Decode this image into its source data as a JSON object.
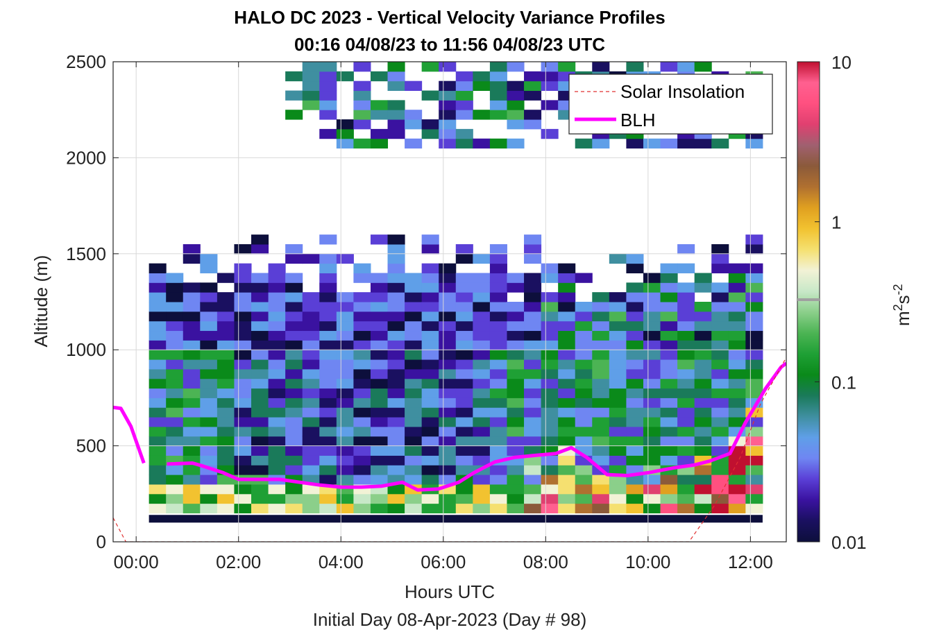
{
  "chart_data": {
    "type": "heatmap",
    "title": "HALO DC 2023 - Vertical Velocity Variance Profiles",
    "subtitle": "00:16 04/08/23 to 11:56 04/08/23  UTC",
    "xlabel": "Hours UTC",
    "xlabel2": "Initial Day 08-Apr-2023 (Day # 98)",
    "ylabel": "Altitude (m)",
    "colorbar_label": "m",
    "colorbar_label_sup": "2",
    "colorbar_label_s": "s",
    "colorbar_label_sup2": "-2",
    "xlim": [
      -0.45,
      12.7
    ],
    "ylim": [
      0,
      2500
    ],
    "x_tick_labels": [
      "00:00",
      "02:00",
      "04:00",
      "06:00",
      "08:00",
      "10:00",
      "12:00"
    ],
    "x_tick_values": [
      0,
      2,
      4,
      6,
      8,
      10,
      12
    ],
    "y_tick_labels": [
      "0",
      "500",
      "1000",
      "1500",
      "2000",
      "2500"
    ],
    "y_tick_values": [
      0,
      500,
      1000,
      1500,
      2000,
      2500
    ],
    "colorbar_tick_labels": [
      "0.01",
      "0.1",
      "1",
      "10"
    ],
    "colorbar_tick_values": [
      0.01,
      0.1,
      1,
      10
    ],
    "colorbar_scale": "log",
    "colorbar_range": [
      0.01,
      10
    ],
    "grid": true,
    "legend": {
      "placement": "top-right",
      "entries": [
        {
          "label": "Solar Insolation",
          "color": "#e03030",
          "style": "dashed"
        },
        {
          "label": "BLH",
          "color": "#ff00ff",
          "style": "solid"
        }
      ]
    },
    "series": [
      {
        "name": "BLH",
        "color": "#ff00ff",
        "segments": [
          {
            "x": [
              -0.45,
              -0.3,
              -0.1,
              0.15
            ],
            "y": [
              700,
              695,
              600,
              410
            ]
          },
          {
            "x": [
              0.6,
              1.1,
              1.3,
              1.7,
              2.0,
              2.4,
              2.8,
              3.2,
              3.6,
              4.0,
              4.4,
              4.8,
              5.2,
              5.5,
              5.9,
              6.3,
              6.6,
              7.0,
              7.4,
              7.8,
              8.2,
              8.5,
              8.8,
              9.2,
              9.6,
              10.0,
              10.5,
              10.9,
              11.2,
              11.6,
              11.9,
              12.3,
              12.6,
              12.7
            ],
            "y": [
              405,
              410,
              395,
              360,
              325,
              325,
              325,
              310,
              295,
              285,
              285,
              290,
              310,
              270,
              275,
              310,
              360,
              415,
              440,
              450,
              460,
              490,
              440,
              350,
              345,
              360,
              385,
              400,
              420,
              460,
              620,
              800,
              910,
              930
            ]
          }
        ]
      },
      {
        "name": "Solar Insolation",
        "color": "#e03030",
        "segments": [
          {
            "x": [
              -0.45,
              -0.2,
              10.8,
              11.3,
              11.8,
              12.2,
              12.7
            ],
            "y": [
              125,
              0,
              0,
              190,
              440,
              720,
              960
            ]
          }
        ]
      }
    ],
    "heatmap": {
      "x_start": 0.25,
      "x_step": 0.333,
      "columns": 36,
      "y_bin": 50,
      "bottom_band": {
        "y": [
          100,
          140
        ],
        "value": 0.01
      },
      "description_levels": [
        0.01,
        0.02,
        0.03,
        0.05,
        0.08,
        0.12,
        0.2,
        0.35,
        0.6,
        1.0,
        2.0
      ]
    },
    "colors": {
      "colormap": [
        "#0d0f3c",
        "#1a1060",
        "#3a12a0",
        "#5a3fd6",
        "#6f86f2",
        "#5f9fe8",
        "#3f8fa0",
        "#1a7a5a",
        "#0a8a1a",
        "#1fa035",
        "#4cb454",
        "#8bcf8a",
        "#c8e8c8",
        "#f2f2d6",
        "#f5e070",
        "#f2c230",
        "#e0a020",
        "#b07030",
        "#8b5a3a",
        "#a06070",
        "#e04070",
        "#ff5080",
        "#ff6090",
        "#c01030"
      ],
      "colormap_marker": "#a0a0a0"
    }
  }
}
